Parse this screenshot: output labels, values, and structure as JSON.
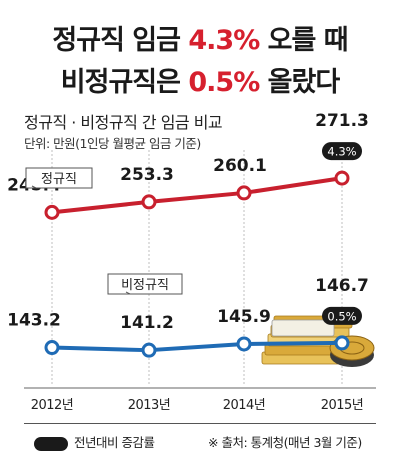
{
  "headline": {
    "line1_prefix": "정규직 임금 ",
    "line1_highlight": "4.3%",
    "line1_suffix": " 오를 때",
    "line2_prefix": "비정규직은 ",
    "line2_highlight": "0.5%",
    "line2_suffix": " 올랐다"
  },
  "subtitle": "정규직 · 비정규직 간 임금 비교",
  "unit": "단위: 만원(1인당 월평균 임금 기준)",
  "legend_label": "전년대비 증감률",
  "source": "※ 출처: 통계청(매년 3월 기준)",
  "colors": {
    "regular": "#c8202e",
    "nonregular": "#1f6bb5",
    "highlight": "#d6202e"
  },
  "icons": [
    "money-stack-icon",
    "coin-stack-icon"
  ],
  "chart_data": {
    "type": "line",
    "categories": [
      "2012년",
      "2013년",
      "2014년",
      "2015년"
    ],
    "ylim": [
      130,
      285
    ],
    "grid": false,
    "series": [
      {
        "name": "정규직",
        "key": "regular",
        "values": [
          245.4,
          253.3,
          260.1,
          271.3
        ],
        "labels": [
          "245.4",
          "253.3",
          "260.1",
          "271.3"
        ],
        "change_badge": "4.3%"
      },
      {
        "name": "비정규직",
        "key": "nonregular",
        "values": [
          143.2,
          141.2,
          145.9,
          146.7
        ],
        "labels": [
          "143.2",
          "141.2",
          "145.9",
          "146.7"
        ],
        "change_badge": "0.5%"
      }
    ]
  }
}
